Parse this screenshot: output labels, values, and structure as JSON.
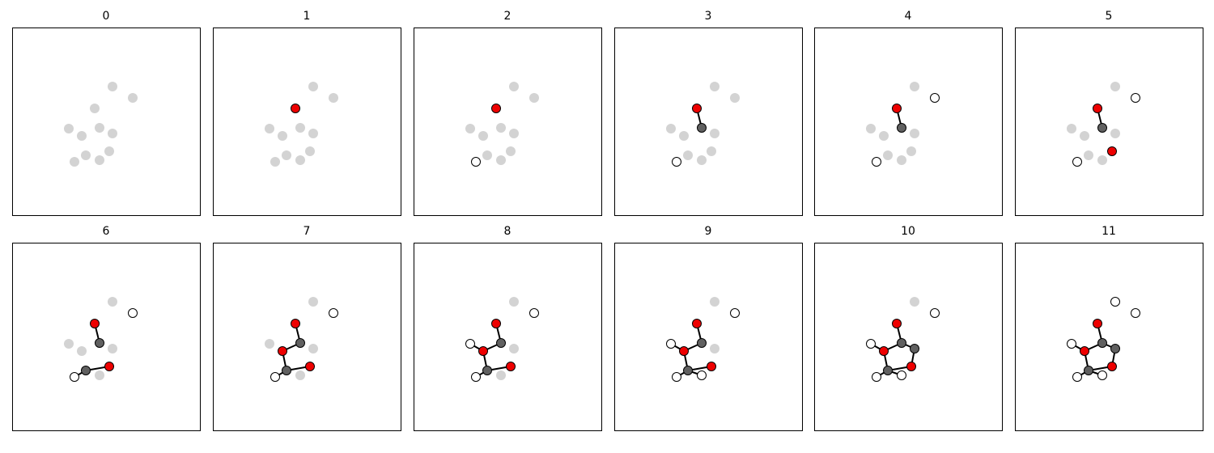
{
  "panels": [
    {
      "title": "0"
    },
    {
      "title": "1"
    },
    {
      "title": "2"
    },
    {
      "title": "3"
    },
    {
      "title": "4"
    },
    {
      "title": "5"
    },
    {
      "title": "6"
    },
    {
      "title": "7"
    },
    {
      "title": "8"
    },
    {
      "title": "9"
    },
    {
      "title": "10"
    },
    {
      "title": "11"
    }
  ]
}
